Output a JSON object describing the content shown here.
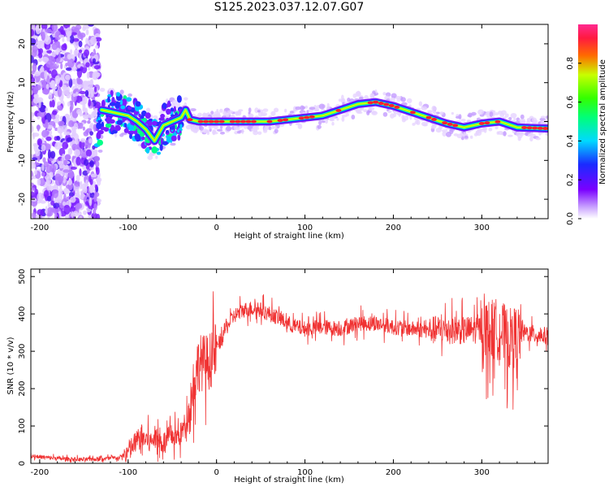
{
  "title": "S125.2023.037.12.07.G07",
  "chart_data": [
    {
      "type": "heatmap",
      "xlabel": "Height of straight line (km)",
      "ylabel": "Frequency (Hz)",
      "xlim": [
        -210,
        375
      ],
      "ylim": [
        -25,
        25
      ],
      "xticks": [
        -200,
        -100,
        0,
        100,
        200,
        300
      ],
      "yticks": [
        -20,
        -10,
        0,
        10,
        20
      ],
      "grid": false,
      "colorbar": {
        "label": "Normalized spectral amplitude",
        "range": [
          0,
          1
        ],
        "ticks": [
          0.0,
          0.2,
          0.4,
          0.6,
          0.8
        ]
      },
      "ridge_frequency_track": {
        "x": [
          -130,
          -120,
          -110,
          -100,
          -90,
          -80,
          -70,
          -60,
          -50,
          -40,
          -35,
          -30,
          -20,
          -10,
          0,
          20,
          40,
          60,
          80,
          100,
          120,
          140,
          160,
          180,
          200,
          220,
          240,
          260,
          280,
          300,
          320,
          340,
          375
        ],
        "y": [
          3,
          2.5,
          2,
          1.5,
          0,
          -2,
          -5,
          -1,
          0,
          1,
          3,
          0.5,
          0,
          0,
          0,
          0,
          0,
          0,
          0.5,
          1,
          1.5,
          3,
          4.5,
          5,
          4,
          2.5,
          1,
          -0.5,
          -1.5,
          -0.5,
          0,
          -1.5,
          -1.8
        ]
      }
    },
    {
      "type": "line",
      "xlabel": "Height of straight line (km)",
      "ylabel": "SNR (10 * v/v)",
      "xlim": [
        -210,
        375
      ],
      "ylim": [
        0,
        520
      ],
      "xticks": [
        -200,
        -100,
        0,
        100,
        200,
        300
      ],
      "yticks": [
        0,
        100,
        200,
        300,
        400,
        500
      ],
      "grid": false,
      "series": [
        {
          "color": "#f03232",
          "x": [
            -210,
            -190,
            -170,
            -150,
            -130,
            -110,
            -100,
            -95,
            -90,
            -85,
            -80,
            -75,
            -70,
            -65,
            -60,
            -55,
            -50,
            -45,
            -40,
            -35,
            -30,
            -25,
            -20,
            -15,
            -10,
            -5,
            0,
            5,
            10,
            20,
            30,
            40,
            50,
            60,
            70,
            80,
            90,
            100,
            120,
            140,
            160,
            180,
            200,
            220,
            240,
            260,
            280,
            300,
            310,
            320,
            330,
            340,
            350,
            360,
            375
          ],
          "y": [
            20,
            15,
            12,
            10,
            12,
            15,
            30,
            45,
            60,
            70,
            65,
            55,
            70,
            60,
            55,
            65,
            75,
            70,
            80,
            110,
            150,
            230,
            270,
            270,
            270,
            280,
            310,
            330,
            360,
            395,
            410,
            415,
            410,
            400,
            390,
            375,
            365,
            360,
            365,
            360,
            375,
            375,
            365,
            360,
            355,
            360,
            355,
            360,
            355,
            360,
            330,
            340,
            350,
            345,
            340
          ]
        }
      ]
    }
  ]
}
